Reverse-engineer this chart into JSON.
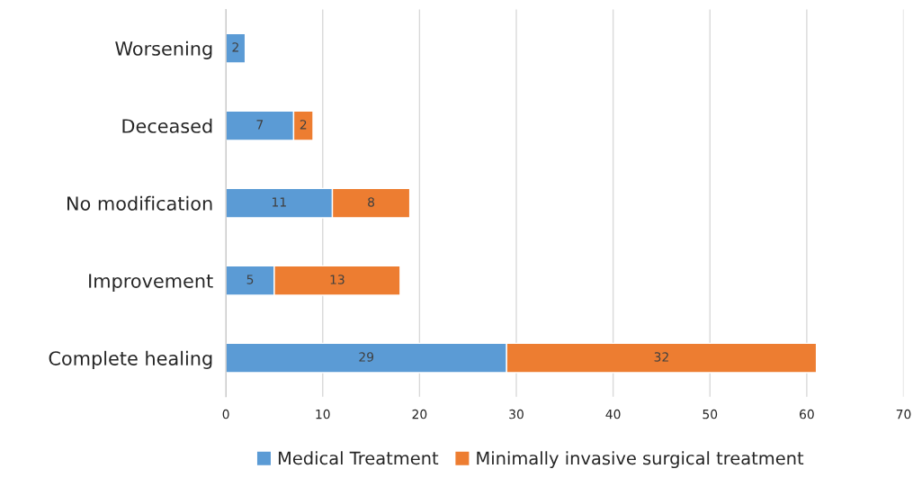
{
  "chart_data": {
    "type": "bar",
    "orientation": "horizontal",
    "stacked": true,
    "categories": [
      "Worsening",
      "Deceased",
      "No modification",
      "Improvement",
      "Complete healing"
    ],
    "series": [
      {
        "name": "Medical Treatment",
        "color": "#5b9bd5",
        "values": [
          2,
          7,
          11,
          5,
          29
        ]
      },
      {
        "name": "Minimally invasive surgical treatment",
        "color": "#ed7d31",
        "values": [
          null,
          2,
          8,
          13,
          32
        ]
      }
    ],
    "xlim": [
      0,
      70
    ],
    "xticks": [
      0,
      10,
      20,
      30,
      40,
      50,
      60,
      70
    ],
    "grid": "x",
    "legend": "bottom",
    "data_labels": true
  }
}
